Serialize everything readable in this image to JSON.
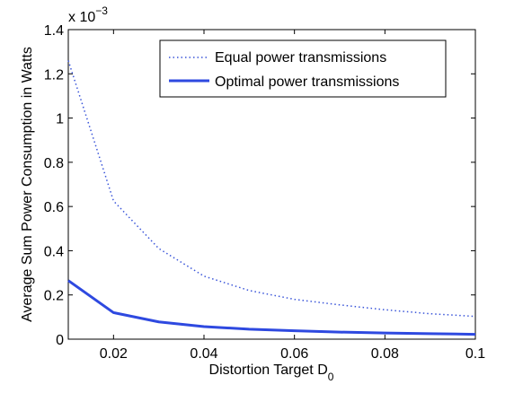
{
  "chart_data": {
    "type": "line",
    "title": "",
    "xlabel": "Distortion Target D",
    "xlabel_sub": "0",
    "ylabel": "Average Sum Power Consumption in Watts",
    "y_multiplier_base": "x 10",
    "y_multiplier_exp": "−3",
    "xlim": [
      0.01,
      0.1
    ],
    "ylim": [
      0,
      1.4
    ],
    "xticks": [
      0.02,
      0.04,
      0.06,
      0.08,
      0.1
    ],
    "xtick_labels": [
      "0.02",
      "0.04",
      "0.06",
      "0.08",
      "0.1"
    ],
    "yticks": [
      0,
      0.2,
      0.4,
      0.6,
      0.8,
      1,
      1.2,
      1.4
    ],
    "ytick_labels": [
      "0",
      "0.2",
      "0.4",
      "0.6",
      "0.8",
      "1",
      "1.2",
      "1.4"
    ],
    "grid": false,
    "legend_position": "top-right",
    "x": [
      0.01,
      0.02,
      0.03,
      0.04,
      0.05,
      0.06,
      0.07,
      0.08,
      0.09,
      0.1
    ],
    "series": [
      {
        "name": "Equal power transmissions",
        "style": "dotted",
        "color": "#3a55d9",
        "values": [
          1.26,
          0.625,
          0.41,
          0.285,
          0.22,
          0.18,
          0.155,
          0.133,
          0.115,
          0.103
        ]
      },
      {
        "name": "Optimal power transmissions",
        "style": "solid",
        "color": "#2e49e0",
        "values": [
          0.265,
          0.12,
          0.078,
          0.057,
          0.045,
          0.038,
          0.032,
          0.028,
          0.025,
          0.022
        ]
      }
    ]
  }
}
